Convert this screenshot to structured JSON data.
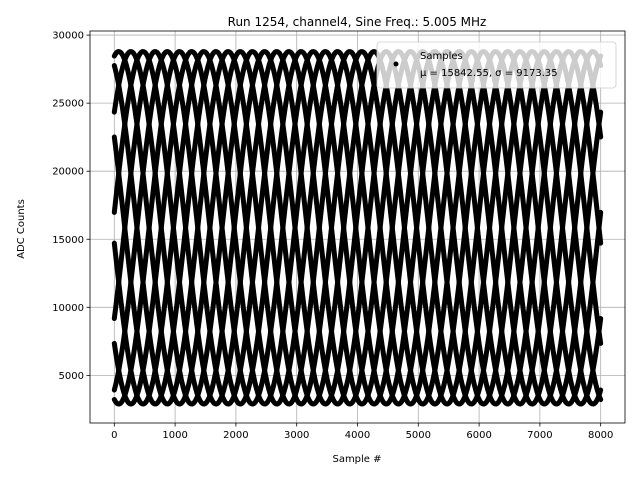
{
  "chart_data": {
    "type": "scatter",
    "title": "Run 1254, channel4, Sine Freq.: 5.005 MHz",
    "xlabel": "Sample #",
    "ylabel": "ADC Counts",
    "xlim": [
      -400,
      8400
    ],
    "ylim": [
      1500,
      30300
    ],
    "xticks": [
      0,
      1000,
      2000,
      3000,
      4000,
      5000,
      6000,
      7000,
      8000
    ],
    "yticks": [
      5000,
      10000,
      15000,
      20000,
      25000,
      30000
    ],
    "grid": true,
    "legend": {
      "placement": "top-right",
      "label": "Samples",
      "stats": "μ = 15842.55, σ = 9173.35"
    },
    "series": [
      {
        "name": "Samples",
        "color": "#000000",
        "model": {
          "offset": 15842.55,
          "amplitude": 12950,
          "cycle_period_samples": 2000,
          "phase_offsets_deg": [
            5,
            41,
            77,
            113,
            149,
            185,
            221,
            257,
            293,
            329
          ]
        },
        "x_range": [
          0,
          8000
        ]
      }
    ]
  }
}
